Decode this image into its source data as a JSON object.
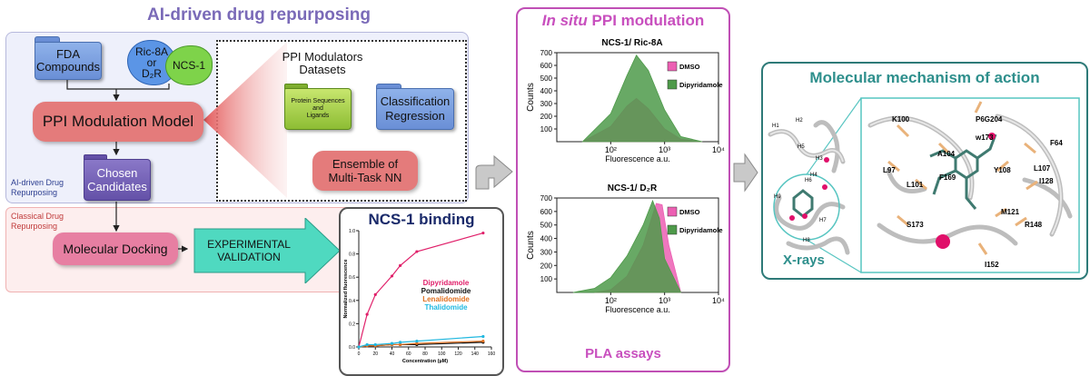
{
  "ai_section": {
    "title": "AI-driven drug repurposing",
    "side_label": "AI-driven Drug\nRepurposing",
    "fda_folder": "FDA\nCompounds",
    "ric_blob": "Ric-8A\nor\nD₂R",
    "ncs_blob": "NCS-1",
    "model": "PPI Modulation Model",
    "datasets_title": "PPI Modulators\nDatasets",
    "protein_folder": "Protein Sequences\nand\nLigands",
    "classification_folder": "Classification\nRegression",
    "ensemble": "Ensemble of\nMulti-Task NN",
    "chosen": "Chosen\nCandidates"
  },
  "classical_section": {
    "side_label": "Classical Drug\nRepurposing",
    "docking": "Molecular Docking",
    "validation": "EXPERIMENTAL\nVALIDATION"
  },
  "binding_panel": {
    "title": "NCS-1 binding",
    "ylabel": "Normalized fluorescence",
    "xlabel": "Concentration (µM)",
    "legend": [
      "Dipyridamole",
      "Pomalidomide",
      "Lenalidomide",
      "Thalidomide"
    ]
  },
  "pla_panel": {
    "title_italic": "In situ",
    "title_rest": " PPI modulation",
    "footer": "PLA assays",
    "top_title": "NCS-1/ Ric-8A",
    "bottom_title": "NCS-1/ D₂R",
    "ylabel": "Counts",
    "xlabel": "Fluorescence a.u.",
    "legend": [
      "DMSO",
      "Dipyridamole"
    ]
  },
  "mechanism_panel": {
    "title": "Molecular mechanism of action",
    "xray": "X-rays",
    "helix_labels": [
      "H1",
      "H2",
      "H3",
      "H4",
      "H5",
      "H6",
      "H7",
      "H8",
      "H9"
    ],
    "residues": [
      "K100",
      "P6G204",
      "w173",
      "F64",
      "A104",
      "L97",
      "L101",
      "F169",
      "Y108",
      "L107",
      "I128",
      "S173",
      "M121",
      "R148",
      "I152"
    ]
  },
  "colors": {
    "ai_title": "#7a6ab8",
    "model_pill": "#e47b7b",
    "validation_arrow": "#4fd9c0",
    "dmso": "#ec5fb3",
    "dipyridamole": "#4e9a4a",
    "mechanism_title": "#2e8f8c"
  },
  "chart_data": [
    {
      "type": "scatter",
      "title": "NCS-1 binding",
      "xlabel": "Concentration (µM)",
      "ylabel": "Normalized fluorescence",
      "xlim": [
        0,
        160
      ],
      "ylim": [
        0,
        1.0
      ],
      "x_ticks": [
        0,
        20,
        40,
        60,
        80,
        100,
        120,
        140,
        160
      ],
      "y_ticks": [
        0.0,
        0.2,
        0.4,
        0.6,
        0.8,
        1.0
      ],
      "series": [
        {
          "name": "Dipyridamole",
          "color": "#e0206a",
          "x": [
            0,
            10,
            20,
            40,
            50,
            70,
            150
          ],
          "y": [
            0.0,
            0.28,
            0.45,
            0.61,
            0.7,
            0.82,
            0.98
          ]
        },
        {
          "name": "Pomalidomide",
          "color": "#111111",
          "x": [
            0,
            10,
            20,
            40,
            50,
            70,
            150
          ],
          "y": [
            0.0,
            0.01,
            0.01,
            0.02,
            0.02,
            0.02,
            0.04
          ]
        },
        {
          "name": "Lenalidomide",
          "color": "#e07020",
          "x": [
            0,
            10,
            20,
            40,
            50,
            70,
            150
          ],
          "y": [
            0.0,
            0.01,
            0.01,
            0.02,
            0.02,
            0.03,
            0.05
          ]
        },
        {
          "name": "Thalidomide",
          "color": "#20b8e0",
          "x": [
            0,
            10,
            20,
            40,
            50,
            70,
            150
          ],
          "y": [
            0.0,
            0.02,
            0.02,
            0.03,
            0.04,
            0.05,
            0.09
          ]
        }
      ]
    },
    {
      "type": "area",
      "title": "NCS-1/ Ric-8A",
      "xlabel": "Fluorescence a.u.",
      "ylabel": "Counts",
      "x_scale": "log",
      "xlim": [
        10,
        10000
      ],
      "ylim": [
        0,
        700
      ],
      "x_ticks": [
        "10²",
        "10³",
        "10⁴"
      ],
      "y_ticks": [
        100,
        200,
        300,
        400,
        500,
        600,
        700
      ],
      "series": [
        {
          "name": "DMSO",
          "color": "#ec5fb3",
          "x": [
            30,
            100,
            200,
            300,
            500,
            1000,
            2000,
            5000
          ],
          "y": [
            0,
            120,
            280,
            340,
            260,
            100,
            20,
            0
          ]
        },
        {
          "name": "Dipyridamole",
          "color": "#4e9a4a",
          "x": [
            30,
            100,
            200,
            300,
            500,
            1000,
            2000,
            5000
          ],
          "y": [
            0,
            220,
            520,
            680,
            560,
            250,
            40,
            0
          ]
        }
      ]
    },
    {
      "type": "area",
      "title": "NCS-1/ D₂R",
      "xlabel": "Fluorescence a.u.",
      "ylabel": "Counts",
      "x_scale": "log",
      "xlim": [
        10,
        10000
      ],
      "ylim": [
        0,
        700
      ],
      "x_ticks": [
        "10²",
        "10³",
        "10⁴"
      ],
      "y_ticks": [
        100,
        200,
        300,
        400,
        500,
        600,
        700
      ],
      "series": [
        {
          "name": "DMSO",
          "color": "#ec5fb3",
          "x": [
            50,
            100,
            200,
            400,
            700,
            900,
            1200,
            2000
          ],
          "y": [
            0,
            20,
            120,
            350,
            660,
            650,
            350,
            0
          ]
        },
        {
          "name": "Dipyridamole",
          "color": "#4e9a4a",
          "x": [
            20,
            50,
            100,
            200,
            400,
            600,
            800,
            1000,
            2000
          ],
          "y": [
            0,
            30,
            110,
            270,
            500,
            680,
            550,
            250,
            0
          ]
        }
      ]
    }
  ]
}
